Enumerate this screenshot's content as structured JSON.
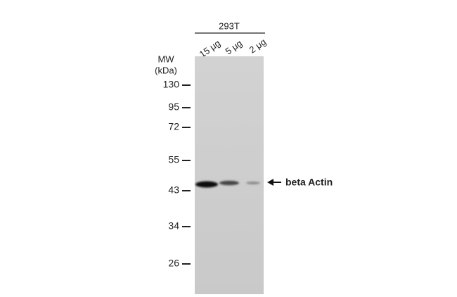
{
  "header": {
    "sample": "293T",
    "lanes": [
      "15 μg",
      "5 μg",
      "2 μg"
    ]
  },
  "mw": {
    "title": "MW",
    "unit": "(kDa)",
    "markers": [
      "130",
      "95",
      "72",
      "55",
      "43",
      "34",
      "26"
    ]
  },
  "band_label": "beta Actin"
}
